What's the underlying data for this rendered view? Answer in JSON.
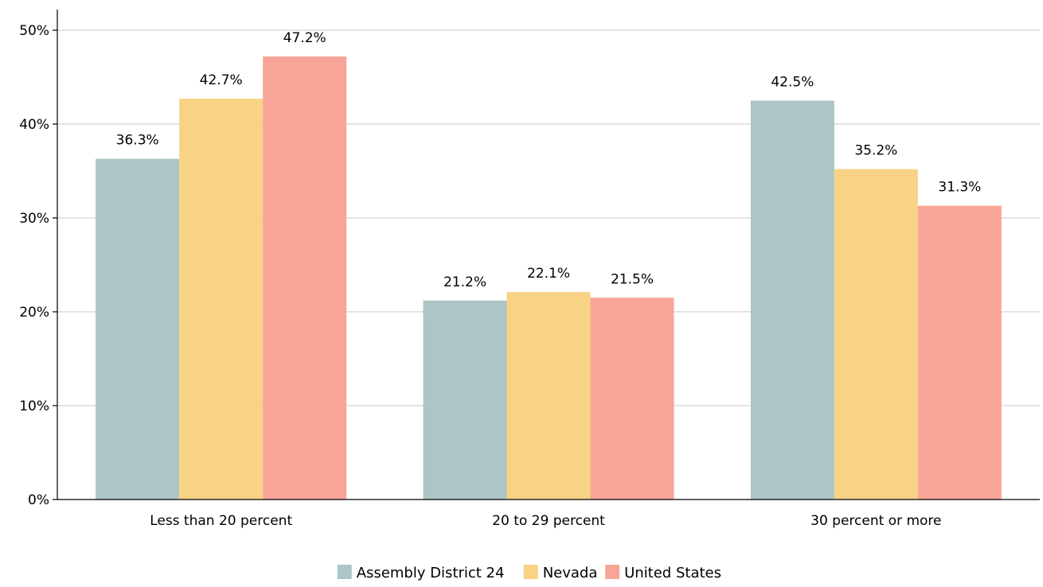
{
  "chart_data": {
    "type": "bar",
    "title": "",
    "xlabel": "",
    "ylabel": "",
    "categories": [
      "Less than 20 percent",
      "20 to 29 percent",
      "30 percent or more"
    ],
    "series": [
      {
        "name": "Assembly District 24",
        "color": "#adc5c6",
        "values": [
          36.3,
          21.2,
          42.5
        ]
      },
      {
        "name": "Nevada",
        "color": "#f8d385",
        "values": [
          42.7,
          22.1,
          35.2
        ]
      },
      {
        "name": "United States",
        "color": "#f8a597",
        "values": [
          47.2,
          21.5,
          31.3
        ]
      }
    ],
    "ylim": [
      0,
      50
    ],
    "yticks": [
      0,
      10,
      20,
      30,
      40,
      50
    ],
    "ytick_labels": [
      "0%",
      "10%",
      "20%",
      "30%",
      "40%",
      "50%"
    ],
    "value_labels": [
      [
        "36.3%",
        "21.2%",
        "42.5%"
      ],
      [
        "42.7%",
        "22.1%",
        "35.2%"
      ],
      [
        "47.2%",
        "21.5%",
        "31.3%"
      ]
    ],
    "grid": true,
    "legend_position": "bottom-center"
  }
}
